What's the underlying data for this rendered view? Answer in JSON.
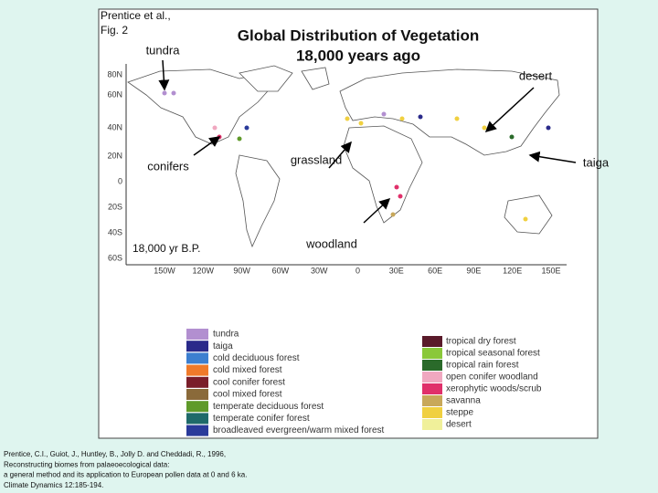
{
  "header": {
    "author": "Prentice et al.,",
    "figure": "Fig. 2"
  },
  "title": {
    "line1": "Global Distribution of Vegetation",
    "line2": "18,000 years ago"
  },
  "annotations": {
    "tundra": "tundra",
    "desert": "desert",
    "conifers": "conifers",
    "grassland": "grassland",
    "taiga": "taiga",
    "woodland": "woodland"
  },
  "map": {
    "period": "18,000 yr B.P.",
    "lat_labels": [
      "80N",
      "60N",
      "40N",
      "20N",
      "0",
      "20S",
      "40S",
      "60S"
    ],
    "lon_labels": [
      "150W",
      "120W",
      "90W",
      "60W",
      "30W",
      "0",
      "30E",
      "60E",
      "90E",
      "120E",
      "150E"
    ]
  },
  "legend_left": [
    {
      "label": "tundra",
      "color": "#b28fd0"
    },
    {
      "label": "taiga",
      "color": "#2a2a8a"
    },
    {
      "label": "cold deciduous forest",
      "color": "#3c7fd0"
    },
    {
      "label": "cold mixed forest",
      "color": "#ef7a2a"
    },
    {
      "label": "cool conifer forest",
      "color": "#7a1e2a"
    },
    {
      "label": "cool mixed forest",
      "color": "#8a6a3a"
    },
    {
      "label": "temperate deciduous forest",
      "color": "#5f9a2a"
    },
    {
      "label": "temperate conifer forest",
      "color": "#1f6a6a"
    },
    {
      "label": "broadleaved evergreen/warm mixed forest",
      "color": "#2a3a9a"
    }
  ],
  "legend_right": [
    {
      "label": "tropical dry forest",
      "color": "#5a1a2a"
    },
    {
      "label": "tropical seasonal forest",
      "color": "#8ac83a"
    },
    {
      "label": "tropical rain forest",
      "color": "#2a6a2a"
    },
    {
      "label": "open conifer woodland",
      "color": "#f0a8c0"
    },
    {
      "label": "xerophytic woods/scrub",
      "color": "#e0306a"
    },
    {
      "label": "savanna",
      "color": "#c8a85a"
    },
    {
      "label": "steppe",
      "color": "#f0d040"
    },
    {
      "label": "desert",
      "color": "#f0f09a"
    }
  ],
  "citation": [
    "Prentice, C.I., Guiot, J., Huntley, B., Jolly D. and Cheddadi, R., 1996,",
    "Reconstructing biomes from palaeoecological data:",
    "a general method and its application to European pollen data at 0 and 6 ka.",
    "Climate Dynamics 12:185-194."
  ]
}
